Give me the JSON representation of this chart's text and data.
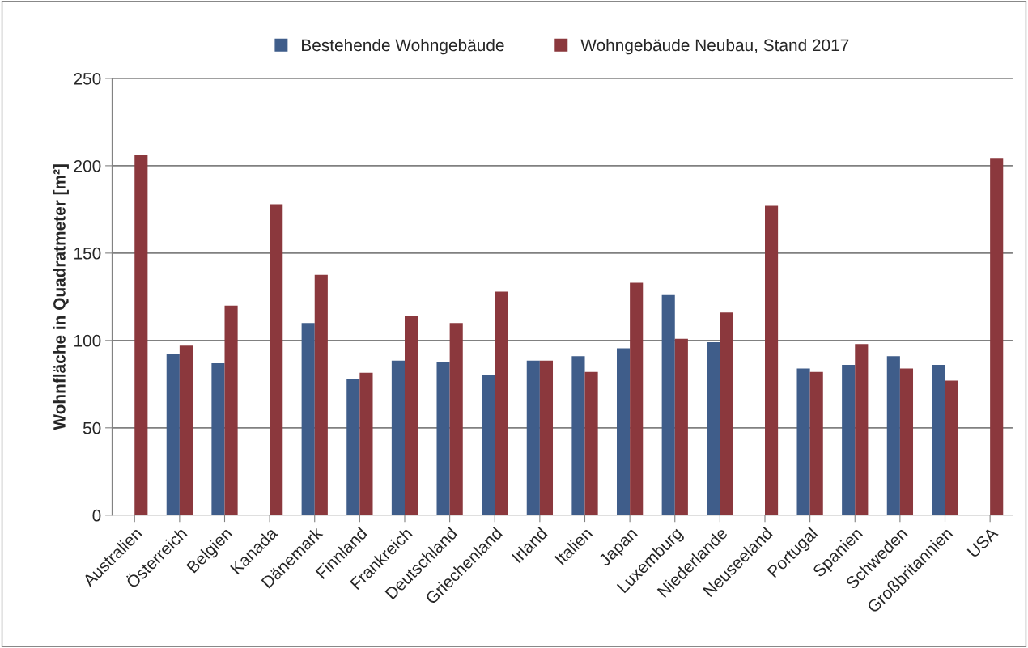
{
  "chart_data": {
    "type": "bar",
    "ylabel": "Wohnfläche in Quadratmeter [m²]",
    "categories": [
      "Australien",
      "Österreich",
      "Belgien",
      "Kanada",
      "Dänemark",
      "Finnland",
      "Frankreich",
      "Deutschland",
      "Griechenland",
      "Irland",
      "Italien",
      "Japan",
      "Luxemburg",
      "Niederlande",
      "Neuseeland",
      "Portugal",
      "Spanien",
      "Schweden",
      "Großbritannien",
      "USA"
    ],
    "series": [
      {
        "name": "Bestehende Wohngebäude",
        "color": "#3f5d8a",
        "values": [
          null,
          92,
          87,
          null,
          110,
          78,
          88.5,
          87.5,
          80.5,
          88.5,
          91,
          95.5,
          126,
          99,
          null,
          84,
          86,
          91,
          86,
          null
        ]
      },
      {
        "name": "Wohngebäude Neubau, Stand 2017",
        "color": "#8b383d",
        "values": [
          206,
          97,
          120,
          178,
          137.5,
          81.5,
          114,
          110,
          128,
          88.5,
          82,
          133,
          101,
          116,
          177,
          82,
          98,
          84,
          77,
          204.5
        ]
      }
    ],
    "ylim": [
      0,
      250
    ],
    "yticks": [
      0,
      50,
      100,
      150,
      200,
      250
    ],
    "grid": "y",
    "legend": "top"
  }
}
